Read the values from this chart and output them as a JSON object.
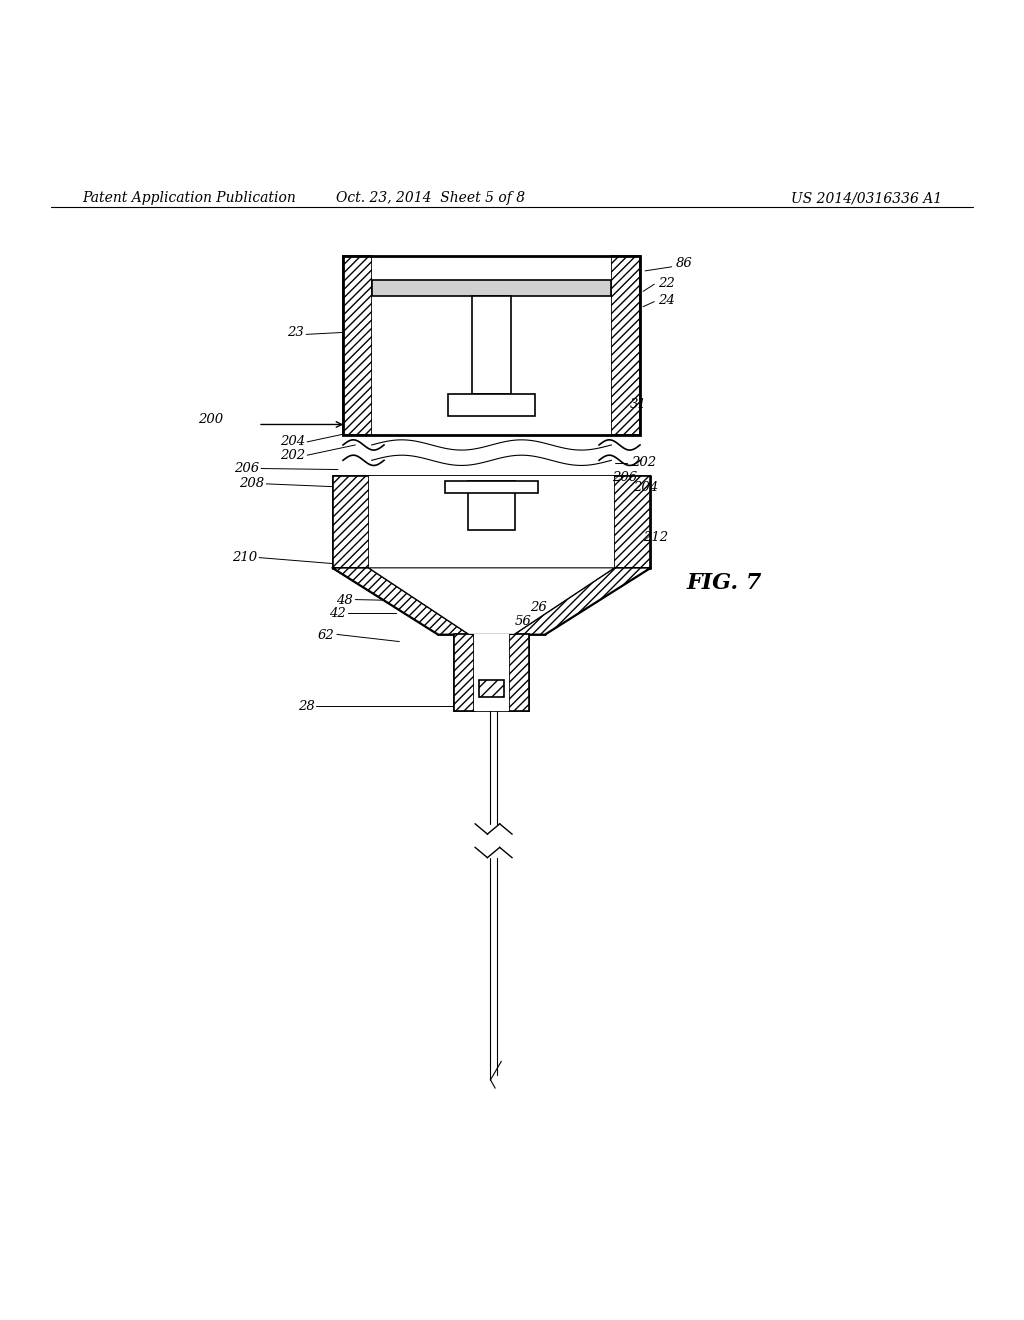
{
  "bg_color": "#ffffff",
  "line_color": "#000000",
  "title_left": "Patent Application Publication",
  "title_center": "Oct. 23, 2014  Sheet 5 of 8",
  "title_right": "US 2014/0316336 A1",
  "fig_label": "FIG. 7",
  "header_fontsize": 10,
  "label_fontsize": 9.5,
  "fig_label_fontsize": 16
}
